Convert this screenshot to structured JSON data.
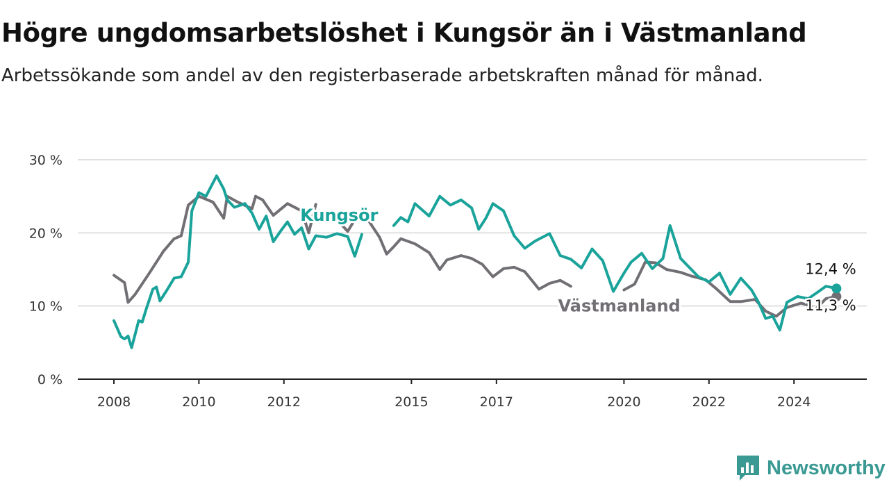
{
  "title": "Högre ungdomsarbetslöshet i Kungsör än i Västmanland",
  "subtitle": "Arbetssökande som andel av den registerbaserade arbetskraften månad för månad.",
  "brand": {
    "name": "Newsworthy",
    "icon": "newsworthy-logo-icon",
    "color": "#3a9a93"
  },
  "chart_data": {
    "type": "line",
    "x_start": "2008-01",
    "x_end": "2024-12",
    "x_ticks": [
      "2008",
      "2010",
      "2012",
      "2015",
      "2017",
      "2020",
      "2022",
      "2024"
    ],
    "x_tick_years": [
      2008,
      2010,
      2012,
      2015,
      2017,
      2020,
      2022,
      2024
    ],
    "y_ticks": [
      "0 %",
      "10 %",
      "20 %",
      "30 %"
    ],
    "y_tick_values": [
      0,
      10,
      20,
      30
    ],
    "ylim": [
      0,
      30
    ],
    "grid": true,
    "series": [
      {
        "name": "Västmanland",
        "color": "#716e74",
        "end_label": "11,3 %",
        "end_value": 11.3,
        "points": [
          [
            "2008-01",
            14.2
          ],
          [
            "2008-04",
            13.2
          ],
          [
            "2008-05",
            10.5
          ],
          [
            "2008-07",
            11.6
          ],
          [
            "2008-11",
            14.5
          ],
          [
            "2009-03",
            17.5
          ],
          [
            "2009-06",
            19.2
          ],
          [
            "2009-08",
            19.6
          ],
          [
            "2009-10",
            23.8
          ],
          [
            "2010-01",
            25.0
          ],
          [
            "2010-05",
            24.2
          ],
          [
            "2010-08",
            22.0
          ],
          [
            "2010-09",
            25.0
          ],
          [
            "2010-12",
            24.2
          ],
          [
            "2011-04",
            23.3
          ],
          [
            "2011-05",
            25.0
          ],
          [
            "2011-07",
            24.5
          ],
          [
            "2011-10",
            22.4
          ],
          [
            "2012-02",
            24.0
          ],
          [
            "2012-06",
            23.0
          ],
          [
            "2012-08",
            20.0
          ],
          [
            "2012-10",
            23.9
          ],
          null,
          [
            "2013-04",
            21.8
          ],
          [
            "2013-07",
            20.2
          ],
          [
            "2013-10",
            22.6
          ],
          null,
          [
            "2014-01",
            21.6
          ],
          [
            "2014-04",
            19.4
          ],
          [
            "2014-06",
            17.1
          ],
          [
            "2014-08",
            18.1
          ],
          [
            "2014-10",
            19.2
          ],
          [
            "2015-02",
            18.5
          ],
          [
            "2015-06",
            17.3
          ],
          [
            "2015-09",
            15.0
          ],
          [
            "2015-11",
            16.3
          ],
          [
            "2016-03",
            16.9
          ],
          [
            "2016-06",
            16.5
          ],
          [
            "2016-09",
            15.7
          ],
          [
            "2016-12",
            14.0
          ],
          [
            "2017-03",
            15.1
          ],
          [
            "2017-06",
            15.3
          ],
          [
            "2017-09",
            14.7
          ],
          [
            "2018-01",
            12.3
          ],
          [
            "2018-04",
            13.1
          ],
          [
            "2018-07",
            13.5
          ],
          [
            "2018-10",
            12.7
          ],
          null,
          [
            "2020-01",
            12.2
          ],
          [
            "2020-04",
            13.0
          ],
          [
            "2020-07",
            16.0
          ],
          [
            "2020-10",
            15.9
          ],
          [
            "2021-01",
            15.0
          ],
          [
            "2021-05",
            14.6
          ],
          [
            "2021-08",
            14.1
          ],
          [
            "2021-12",
            13.6
          ],
          [
            "2022-03",
            12.4
          ],
          [
            "2022-07",
            10.6
          ],
          [
            "2022-10",
            10.6
          ],
          [
            "2023-02",
            10.9
          ],
          [
            "2023-05",
            9.3
          ],
          [
            "2023-08",
            8.6
          ],
          [
            "2023-11",
            9.8
          ],
          [
            "2024-03",
            10.4
          ],
          [
            "2024-06",
            10.0
          ],
          null,
          [
            "2024-07",
            9.5
          ],
          [
            "2024-10",
            11.0
          ],
          [
            "2024-12",
            11.2
          ],
          [
            "2025-01",
            11.3
          ]
        ]
      },
      {
        "name": "Kungsör",
        "color": "#1aa39a",
        "end_label": "12,4 %",
        "end_value": 12.4,
        "points": [
          [
            "2008-01",
            8.0
          ],
          [
            "2008-03",
            5.8
          ],
          [
            "2008-04",
            5.5
          ],
          [
            "2008-05",
            5.9
          ],
          [
            "2008-06",
            4.3
          ],
          [
            "2008-08",
            8.0
          ],
          [
            "2008-09",
            7.8
          ],
          [
            "2008-10",
            9.4
          ],
          [
            "2008-12",
            12.3
          ],
          [
            "2009-01",
            12.6
          ],
          [
            "2009-02",
            10.7
          ],
          [
            "2009-04",
            12.2
          ],
          [
            "2009-06",
            13.8
          ],
          [
            "2009-08",
            14.0
          ],
          [
            "2009-10",
            16.0
          ],
          [
            "2009-11",
            23.0
          ],
          [
            "2010-01",
            25.5
          ],
          [
            "2010-03",
            25.0
          ],
          [
            "2010-06",
            27.8
          ],
          [
            "2010-08",
            26.0
          ],
          [
            "2010-09",
            24.5
          ],
          [
            "2010-11",
            23.5
          ],
          [
            "2011-02",
            24.0
          ],
          [
            "2011-04",
            22.7
          ],
          [
            "2011-06",
            20.5
          ],
          [
            "2011-08",
            22.3
          ],
          [
            "2011-10",
            18.8
          ],
          [
            "2011-12",
            20.2
          ],
          [
            "2012-02",
            21.5
          ],
          [
            "2012-04",
            19.8
          ],
          [
            "2012-06",
            20.7
          ],
          [
            "2012-08",
            17.8
          ],
          [
            "2012-10",
            19.6
          ],
          [
            "2013-01",
            19.4
          ],
          [
            "2013-04",
            19.9
          ],
          [
            "2013-07",
            19.5
          ],
          [
            "2013-09",
            16.8
          ],
          [
            "2013-11",
            19.8
          ],
          null,
          [
            "2014-08",
            21.0
          ],
          [
            "2014-10",
            22.1
          ],
          [
            "2014-12",
            21.5
          ],
          [
            "2015-02",
            24.0
          ],
          [
            "2015-06",
            22.3
          ],
          [
            "2015-09",
            25.0
          ],
          [
            "2015-12",
            23.8
          ],
          [
            "2016-03",
            24.5
          ],
          [
            "2016-06",
            23.4
          ],
          [
            "2016-08",
            20.5
          ],
          [
            "2016-10",
            22.0
          ],
          [
            "2016-12",
            24.0
          ],
          [
            "2017-03",
            23.0
          ],
          [
            "2017-06",
            19.6
          ],
          [
            "2017-09",
            17.9
          ],
          [
            "2017-12",
            18.9
          ],
          [
            "2018-04",
            19.9
          ],
          [
            "2018-07",
            16.9
          ],
          [
            "2018-10",
            16.4
          ],
          [
            "2019-01",
            15.2
          ],
          [
            "2019-04",
            17.8
          ],
          [
            "2019-07",
            16.2
          ],
          [
            "2019-10",
            12.0
          ],
          [
            "2020-01",
            14.5
          ],
          [
            "2020-03",
            16.0
          ],
          [
            "2020-06",
            17.2
          ],
          [
            "2020-09",
            15.1
          ],
          [
            "2020-12",
            16.5
          ],
          [
            "2021-02",
            21.0
          ],
          [
            "2021-05",
            16.5
          ],
          [
            "2021-08",
            15.0
          ],
          [
            "2021-10",
            14.0
          ],
          [
            "2022-01",
            13.3
          ],
          [
            "2022-04",
            14.5
          ],
          [
            "2022-07",
            11.6
          ],
          [
            "2022-10",
            13.8
          ],
          [
            "2023-01",
            12.2
          ],
          [
            "2023-03",
            10.5
          ],
          [
            "2023-05",
            8.3
          ],
          [
            "2023-07",
            8.6
          ],
          [
            "2023-09",
            6.7
          ],
          [
            "2023-11",
            10.5
          ],
          [
            "2024-02",
            11.3
          ],
          [
            "2024-05",
            11.0
          ],
          [
            "2024-08",
            12.0
          ],
          [
            "2024-10",
            12.7
          ],
          [
            "2024-12",
            12.5
          ],
          [
            "2025-01",
            12.4
          ]
        ]
      }
    ]
  }
}
